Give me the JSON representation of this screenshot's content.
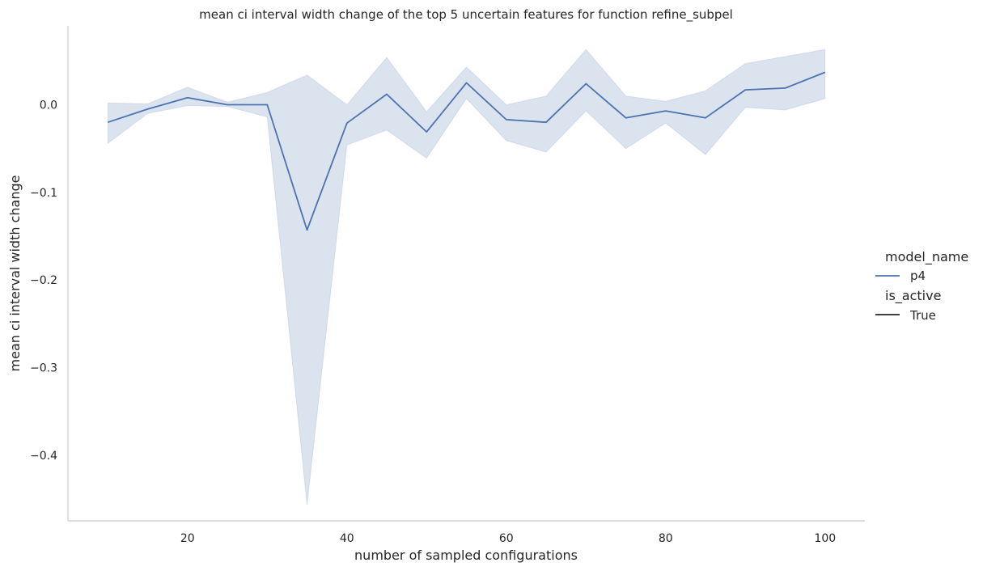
{
  "chart_data": {
    "type": "line",
    "title": "mean ci interval width change of the top 5 uncertain features for function refine_subpel",
    "xlabel": "number of sampled configurations",
    "ylabel": "mean ci interval width change",
    "xlim": [
      5,
      105
    ],
    "ylim": [
      -0.475,
      0.09
    ],
    "xticks": [
      20,
      40,
      60,
      80,
      100
    ],
    "xtick_labels": [
      "20",
      "40",
      "60",
      "80",
      "100"
    ],
    "yticks": [
      0.0,
      -0.1,
      -0.2,
      -0.3,
      -0.4
    ],
    "ytick_labels": [
      "0.0",
      "−0.1",
      "−0.2",
      "−0.3",
      "−0.4"
    ],
    "grid": false,
    "legend_position": "right",
    "line_color": "#4c72b0",
    "band_color": "#4c72b0",
    "series": [
      {
        "name": "p4",
        "x": [
          10,
          15,
          20,
          25,
          30,
          35,
          40,
          45,
          50,
          55,
          60,
          65,
          70,
          75,
          80,
          85,
          90,
          95,
          100
        ],
        "y": [
          -0.02,
          -0.005,
          0.008,
          0.0,
          0.0,
          -0.143,
          -0.021,
          0.012,
          -0.031,
          0.025,
          -0.017,
          -0.02,
          0.024,
          -0.015,
          -0.007,
          -0.015,
          0.017,
          0.019,
          0.037
        ],
        "ci_low": [
          -0.044,
          -0.01,
          -0.001,
          -0.002,
          -0.014,
          -0.457,
          -0.046,
          -0.029,
          -0.061,
          0.007,
          -0.041,
          -0.054,
          -0.007,
          -0.05,
          -0.021,
          -0.057,
          -0.003,
          -0.006,
          0.007
        ],
        "ci_high": [
          0.002,
          0.001,
          0.02,
          0.003,
          0.014,
          0.034,
          0.0,
          0.054,
          -0.008,
          0.043,
          0.0,
          0.01,
          0.063,
          0.01,
          0.004,
          0.016,
          0.047,
          0.055,
          0.063
        ]
      }
    ],
    "legend": {
      "hue_title": "model_name",
      "hue_entries": [
        {
          "label": "p4",
          "color": "#4c72b0"
        }
      ],
      "style_title": "is_active",
      "style_entries": [
        {
          "label": "True",
          "color": "#262626"
        }
      ]
    }
  }
}
